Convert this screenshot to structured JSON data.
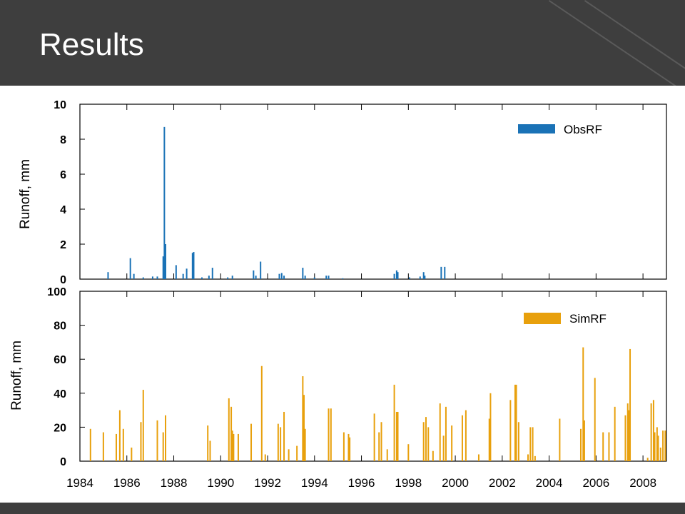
{
  "slide": {
    "title": "Results"
  },
  "colors": {
    "header_bg": "#3e3e3e",
    "obs": "#1a72b6",
    "sim": "#e8a00c"
  },
  "chart_data": [
    {
      "type": "bar",
      "name": "top",
      "ylabel": "Runoff, mm",
      "xlim": [
        1984,
        2009
      ],
      "ylim": [
        0,
        10
      ],
      "yticks": [
        "0",
        "2",
        "4",
        "6",
        "8",
        "10"
      ],
      "legend": "top-right",
      "series": [
        {
          "name": "ObsRF",
          "color": "#1a72b6",
          "x": [
            1985.2,
            1986.15,
            1986.3,
            1986.7,
            1987.1,
            1987.3,
            1987.55,
            1987.6,
            1987.65,
            1988.1,
            1988.4,
            1988.55,
            1988.8,
            1988.85,
            1989.2,
            1989.5,
            1989.65,
            1990.3,
            1990.5,
            1991.4,
            1991.5,
            1991.7,
            1992.5,
            1992.6,
            1992.7,
            1993.5,
            1993.6,
            1994.0,
            1994.5,
            1994.6,
            1995.2,
            1997.4,
            1997.5,
            1997.55,
            1998.05,
            1998.5,
            1998.65,
            1998.7,
            1999.4,
            1999.55
          ],
          "values": [
            0.4,
            1.2,
            0.3,
            0.1,
            0.15,
            0.15,
            1.3,
            8.7,
            2.0,
            0.8,
            0.3,
            0.6,
            1.5,
            1.55,
            0.1,
            0.2,
            0.65,
            0.1,
            0.2,
            0.5,
            0.2,
            1.0,
            0.3,
            0.35,
            0.2,
            0.65,
            0.2,
            0.1,
            0.2,
            0.2,
            0.05,
            0.3,
            0.5,
            0.4,
            0.1,
            0.15,
            0.4,
            0.2,
            0.7,
            0.7
          ]
        }
      ]
    },
    {
      "type": "bar",
      "name": "bottom",
      "ylabel": "Runoff, mm",
      "xlim": [
        1984,
        2009
      ],
      "ylim": [
        0,
        100
      ],
      "yticks": [
        "0",
        "20",
        "40",
        "60",
        "80",
        "100"
      ],
      "xticks": [
        "1984",
        "1986",
        "1988",
        "1990",
        "1992",
        "1994",
        "1996",
        "1998",
        "2000",
        "2002",
        "2004",
        "2006",
        "2008"
      ],
      "legend": "top-right",
      "series": [
        {
          "name": "SimRF",
          "color": "#e8a00c",
          "x": [
            1984.45,
            1985.0,
            1985.55,
            1985.7,
            1985.85,
            1986.2,
            1986.6,
            1986.7,
            1987.3,
            1987.55,
            1987.65,
            1989.45,
            1989.55,
            1990.35,
            1990.45,
            1990.5,
            1990.55,
            1990.75,
            1991.3,
            1991.75,
            1991.9,
            1992.45,
            1992.55,
            1992.7,
            1992.9,
            1993.25,
            1993.5,
            1993.55,
            1993.6,
            1994.6,
            1994.7,
            1995.25,
            1995.45,
            1995.5,
            1996.55,
            1996.75,
            1996.85,
            1997.1,
            1997.4,
            1997.5,
            1997.55,
            1998.0,
            1998.65,
            1998.75,
            1998.85,
            1999.05,
            1999.35,
            1999.5,
            1999.6,
            1999.85,
            2000.3,
            2000.45,
            2001.0,
            2001.45,
            2001.5,
            2002.35,
            2002.55,
            2002.6,
            2002.7,
            2003.1,
            2003.2,
            2003.3,
            2003.4,
            2004.45,
            2005.35,
            2005.45,
            2005.5,
            2005.95,
            2006.3,
            2006.55,
            2006.8,
            2007.25,
            2007.35,
            2007.4,
            2007.45,
            2008.2,
            2008.35,
            2008.45,
            2008.5,
            2008.6,
            2008.65,
            2008.75,
            2008.85,
            2008.95
          ],
          "values": [
            19,
            17,
            16,
            30,
            19,
            8,
            23,
            42,
            24,
            17,
            27,
            21,
            12,
            37,
            32,
            18,
            16,
            16,
            22,
            56,
            4,
            22,
            20,
            29,
            7,
            9,
            50,
            39,
            19,
            31,
            31,
            17,
            16,
            14,
            28,
            17,
            23,
            7,
            45,
            29,
            29,
            10,
            23,
            26,
            20,
            6,
            34,
            15,
            32,
            21,
            27,
            30,
            4,
            25,
            40,
            36,
            45,
            45,
            23,
            4,
            20,
            20,
            3,
            25,
            19,
            67,
            24,
            49,
            17,
            17,
            32,
            27,
            34,
            30,
            66,
            2,
            34,
            36,
            17,
            20,
            15,
            8,
            18,
            18
          ]
        }
      ]
    }
  ]
}
